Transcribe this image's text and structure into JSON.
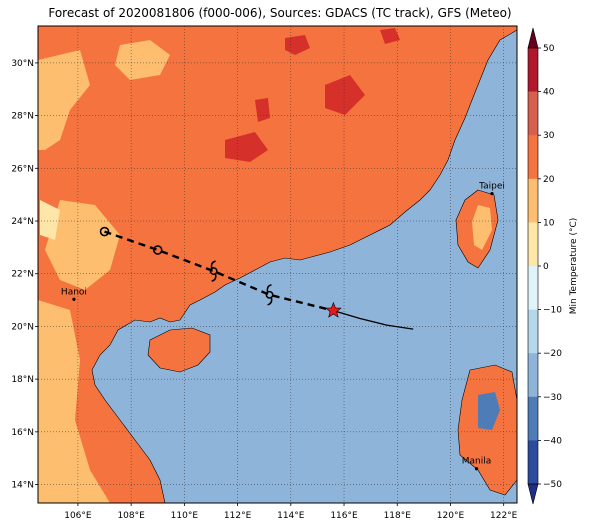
{
  "title": "Forecast of 2020081806 (f000-006), Sources: GDACS (TC track), GFS (Meteo)",
  "map": {
    "lon_range": [
      104.5,
      122.5
    ],
    "lat_range": [
      13.3,
      31.4
    ],
    "lon_ticks": [
      {
        "value": 106,
        "label": "106°E"
      },
      {
        "value": 108,
        "label": "108°E"
      },
      {
        "value": 110,
        "label": "110°E"
      },
      {
        "value": 112,
        "label": "112°E"
      },
      {
        "value": 114,
        "label": "114°E"
      },
      {
        "value": 116,
        "label": "116°E"
      },
      {
        "value": 118,
        "label": "118°E"
      },
      {
        "value": 120,
        "label": "120°E"
      },
      {
        "value": 122,
        "label": "122°E"
      }
    ],
    "lat_ticks": [
      {
        "value": 14,
        "label": "14°N"
      },
      {
        "value": 16,
        "label": "16°N"
      },
      {
        "value": 18,
        "label": "18°N"
      },
      {
        "value": 20,
        "label": "20°N"
      },
      {
        "value": 22,
        "label": "22°N"
      },
      {
        "value": 24,
        "label": "24°N"
      },
      {
        "value": 26,
        "label": "26°N"
      },
      {
        "value": 28,
        "label": "28°N"
      },
      {
        "value": 30,
        "label": "30°N"
      }
    ],
    "places": [
      {
        "name": "Hanoi",
        "lon": 105.85,
        "lat": 21.03
      },
      {
        "name": "Taipei",
        "lon": 121.56,
        "lat": 25.04
      },
      {
        "name": "Manila",
        "lon": 120.98,
        "lat": 14.6
      }
    ],
    "track_past": [
      [
        115.6,
        20.6
      ],
      [
        116.6,
        20.3
      ],
      [
        117.6,
        20.05
      ],
      [
        118.6,
        19.9
      ]
    ],
    "track_forecast": [
      [
        107.0,
        23.6
      ],
      [
        109.0,
        22.9
      ],
      [
        111.1,
        22.1
      ],
      [
        113.2,
        21.2
      ],
      [
        115.6,
        20.6
      ]
    ],
    "forecast_symbols": [
      {
        "type": "tropical-depression",
        "lon": 107.0,
        "lat": 23.6
      },
      {
        "type": "tropical-depression",
        "lon": 109.0,
        "lat": 22.9
      },
      {
        "type": "tropical-storm",
        "lon": 111.1,
        "lat": 22.1
      },
      {
        "type": "tropical-storm",
        "lon": 113.2,
        "lat": 21.2
      }
    ],
    "current_position": {
      "lon": 115.6,
      "lat": 20.6
    },
    "colors": {
      "sea": "#8fb4d9",
      "land_20_30": "#f4733f",
      "land_30_40": "#d6302a",
      "land_10_20": "#fdbf6f",
      "land_0_10": "#fde6a7",
      "track": "#000000",
      "star": "#e41a1c"
    }
  },
  "colorbar": {
    "label": "Min Temperature (°C)",
    "ticks": [
      "50",
      "40",
      "30",
      "20",
      "10",
      "0",
      "−10",
      "−20",
      "−30",
      "−40",
      "−50"
    ],
    "colors": [
      "#67001f",
      "#b2182b",
      "#d6604d",
      "#f4733f",
      "#fdbf6f",
      "#fde6a7",
      "#e0f3f8",
      "#b4d7ea",
      "#8fb4d9",
      "#4d7cb6",
      "#2d4b9e",
      "#1e2f8a"
    ]
  }
}
